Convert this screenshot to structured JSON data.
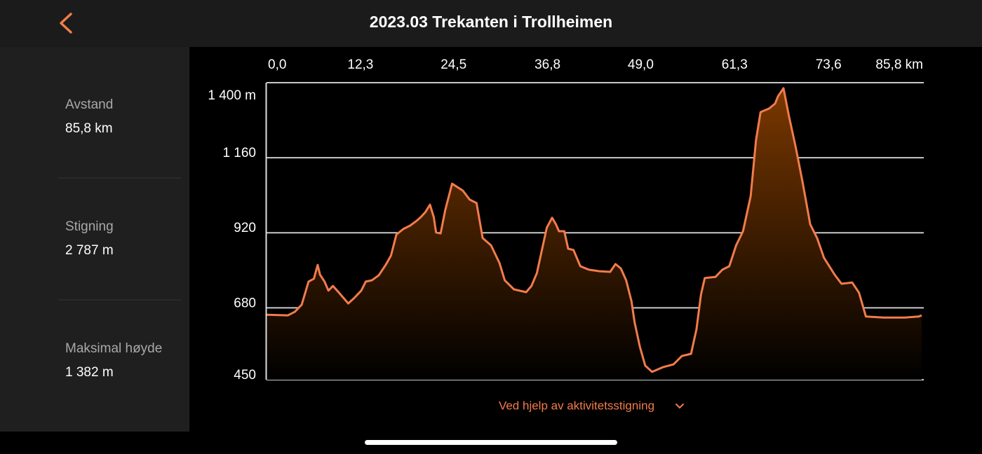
{
  "header": {
    "title": "2023.03 Trekanten i Trollheimen"
  },
  "stats": [
    {
      "label": "Avstand",
      "value": "85,8 km"
    },
    {
      "label": "Stigning",
      "value": "2 787 m"
    },
    {
      "label": "Maksimal høyde",
      "value": "1 382 m"
    }
  ],
  "chart_data": {
    "type": "area",
    "x": [
      0.0,
      2.8,
      3.7,
      4.6,
      5.5,
      6.2,
      6.7,
      7.0,
      7.6,
      8.1,
      8.7,
      9.5,
      10.7,
      11.5,
      12.4,
      13.0,
      13.8,
      14.7,
      15.6,
      16.3,
      17.0,
      17.9,
      18.8,
      19.7,
      20.2,
      20.8,
      21.4,
      21.9,
      22.2,
      22.8,
      23.4,
      24.3,
      25.7,
      26.6,
      27.5,
      28.3,
      29.4,
      30.5,
      31.2,
      32.4,
      34.0,
      34.7,
      35.4,
      36.0,
      36.7,
      37.4,
      37.9,
      38.3,
      39.0,
      39.5,
      40.2,
      41.1,
      42.2,
      43.6,
      45.0,
      45.7,
      46.4,
      47.1,
      47.8,
      48.2,
      48.9,
      49.6,
      50.5,
      51.9,
      53.3,
      54.4,
      55.6,
      56.3,
      56.9,
      57.4,
      58.8,
      59.7,
      60.6,
      61.5,
      62.4,
      63.4,
      64.1,
      64.7,
      65.8,
      66.6,
      67.0,
      67.7,
      68.4,
      69.3,
      70.2,
      71.2,
      72.1,
      73.0,
      74.4,
      75.3,
      76.7,
      77.6,
      78.5,
      80.8,
      83.6,
      85.4,
      85.8
    ],
    "values": [
      658,
      656,
      667,
      690,
      764,
      773,
      817,
      786,
      764,
      735,
      750,
      728,
      694,
      712,
      735,
      764,
      768,
      784,
      817,
      847,
      914,
      932,
      943,
      959,
      970,
      986,
      1010,
      970,
      921,
      918,
      992,
      1077,
      1055,
      1026,
      1015,
      903,
      880,
      824,
      768,
      739,
      730,
      750,
      791,
      858,
      936,
      968,
      947,
      925,
      925,
      869,
      865,
      813,
      802,
      797,
      795,
      820,
      806,
      768,
      701,
      634,
      555,
      495,
      475,
      490,
      499,
      526,
      533,
      611,
      723,
      775,
      779,
      802,
      813,
      880,
      925,
      1037,
      1216,
      1306,
      1317,
      1333,
      1357,
      1382,
      1295,
      1194,
      1082,
      947,
      903,
      840,
      786,
      757,
      761,
      728,
      652,
      649,
      649,
      652,
      656
    ],
    "color": "#f27c4b",
    "fill_color": "#7a3800",
    "xlim": [
      0,
      85.8
    ],
    "xticks": [
      {
        "value": 0,
        "label": "0,0"
      },
      {
        "value": 12.3,
        "label": "12,3"
      },
      {
        "value": 24.5,
        "label": "24,5"
      },
      {
        "value": 36.8,
        "label": "36,8"
      },
      {
        "value": 49.0,
        "label": "49,0"
      },
      {
        "value": 61.3,
        "label": "61,3"
      },
      {
        "value": 73.6,
        "label": "73,6"
      },
      {
        "value": 85.8,
        "label": "85,8 km"
      }
    ],
    "ylim": [
      450,
      1400
    ],
    "yticks": [
      {
        "value": 1400,
        "label": "1 400 m"
      },
      {
        "value": 1160,
        "label": "1 160"
      },
      920,
      680,
      450
    ],
    "grid": true
  },
  "footer": {
    "source_label": "Ved hjelp av aktivitetsstigning"
  }
}
